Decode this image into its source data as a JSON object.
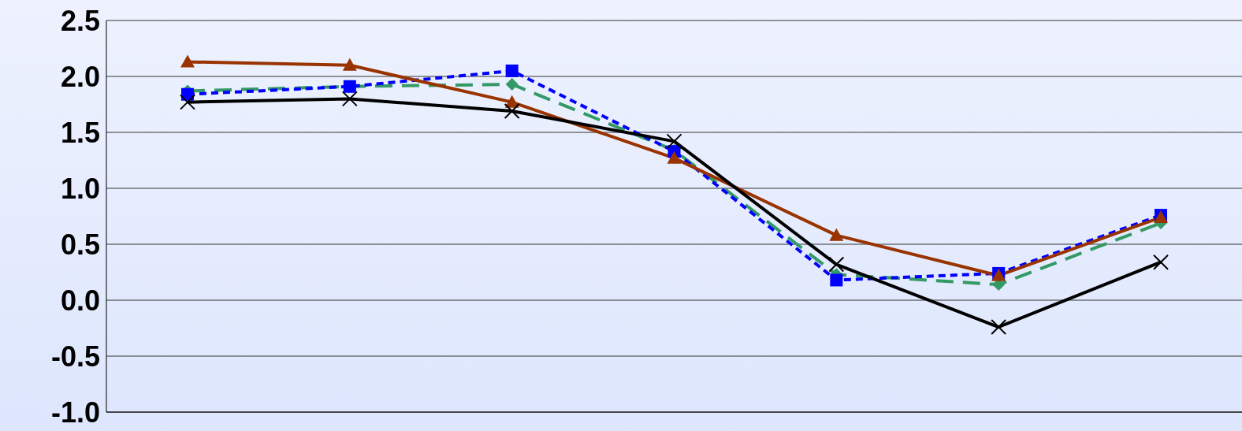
{
  "chart_data": {
    "type": "line",
    "categories": [
      null,
      null,
      null,
      null,
      null,
      null,
      null
    ],
    "series": [
      {
        "color": "#339966",
        "marker": "diamond",
        "line_style": "dashed",
        "values": [
          1.87,
          1.91,
          1.93,
          1.34,
          0.23,
          0.14,
          0.69
        ]
      },
      {
        "color": "#0000ff",
        "marker": "square",
        "line_style": "dotted",
        "values": [
          1.84,
          1.91,
          2.05,
          1.33,
          0.18,
          0.24,
          0.76
        ]
      },
      {
        "color": "#993300",
        "marker": "triangle",
        "line_style": "solid",
        "values": [
          2.13,
          2.1,
          1.77,
          1.27,
          0.58,
          0.22,
          0.74
        ]
      },
      {
        "color": "#000000",
        "marker": "cross",
        "line_style": "solid",
        "values": [
          1.77,
          1.8,
          1.69,
          1.42,
          0.32,
          -0.24,
          0.34
        ]
      }
    ],
    "ylim": [
      -1.0,
      2.5
    ],
    "yticks": [
      {
        "value": -1.0,
        "label": "-1.0"
      },
      {
        "value": -0.5,
        "label": "-0.5"
      },
      {
        "value": 0.0,
        "label": "0.0"
      },
      {
        "value": 0.5,
        "label": "0.5"
      },
      {
        "value": 1.0,
        "label": "1.0"
      },
      {
        "value": 1.5,
        "label": "1.5"
      },
      {
        "value": 2.0,
        "label": "2.0"
      },
      {
        "value": 2.5,
        "label": "2.5"
      }
    ],
    "grid": "y",
    "legend": false,
    "tick_labels": "y"
  }
}
